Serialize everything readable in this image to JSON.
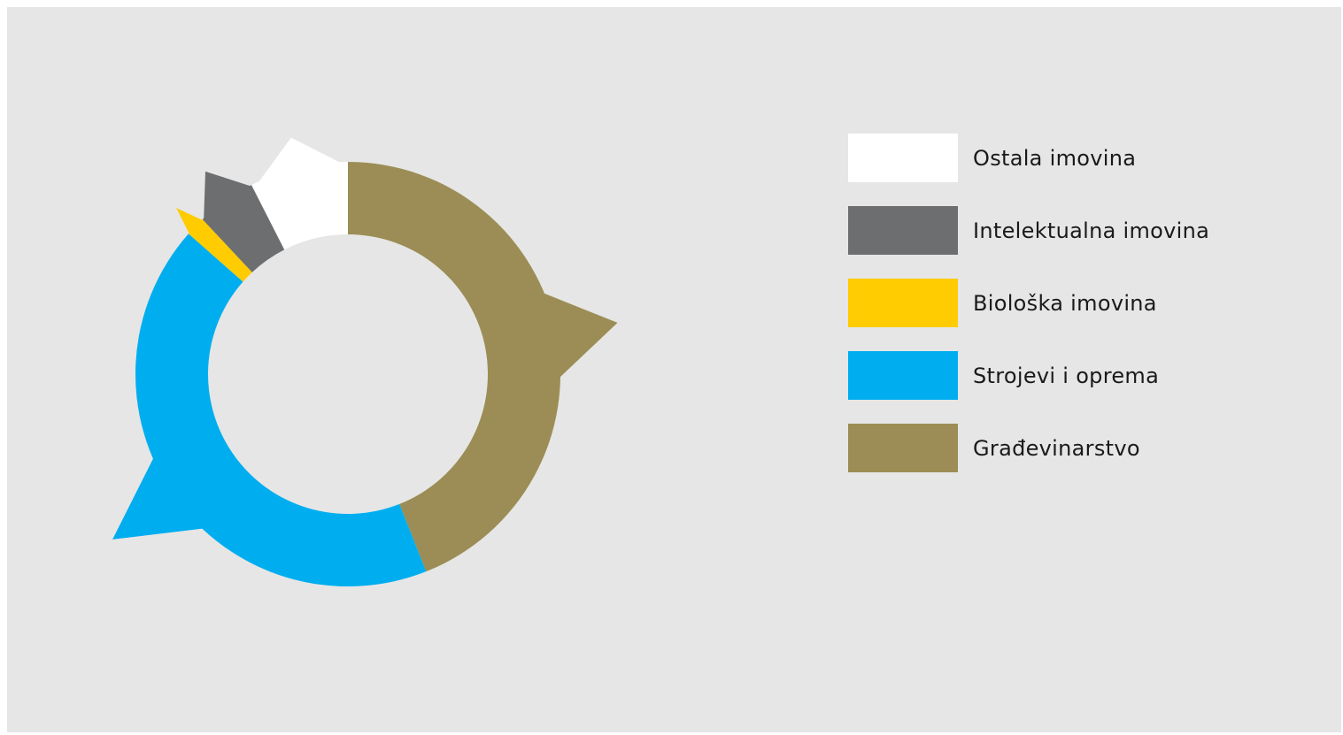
{
  "chart_data": {
    "type": "pie",
    "variant": "donut-with-callout-spikes",
    "title": "",
    "series": [
      {
        "name": "Građevinarstvo",
        "value": 44,
        "color": "#9b8d55"
      },
      {
        "name": "Strojevi i oprema",
        "value": 42.5,
        "color": "#00aeef"
      },
      {
        "name": "Biološka imovina",
        "value": 1.5,
        "color": "#fecc00"
      },
      {
        "name": "Intelektualna imovina",
        "value": 4.5,
        "color": "#6d6e70"
      },
      {
        "name": "Ostala imovina",
        "value": 7.5,
        "color": "#ffffff"
      }
    ],
    "legend": {
      "position": "right",
      "order": [
        "Ostala imovina",
        "Intelektualna imovina",
        "Biološka imovina",
        "Strojevi i oprema",
        "Građevinarstvo"
      ]
    }
  },
  "colors": {
    "background": "#e6e6e6"
  }
}
